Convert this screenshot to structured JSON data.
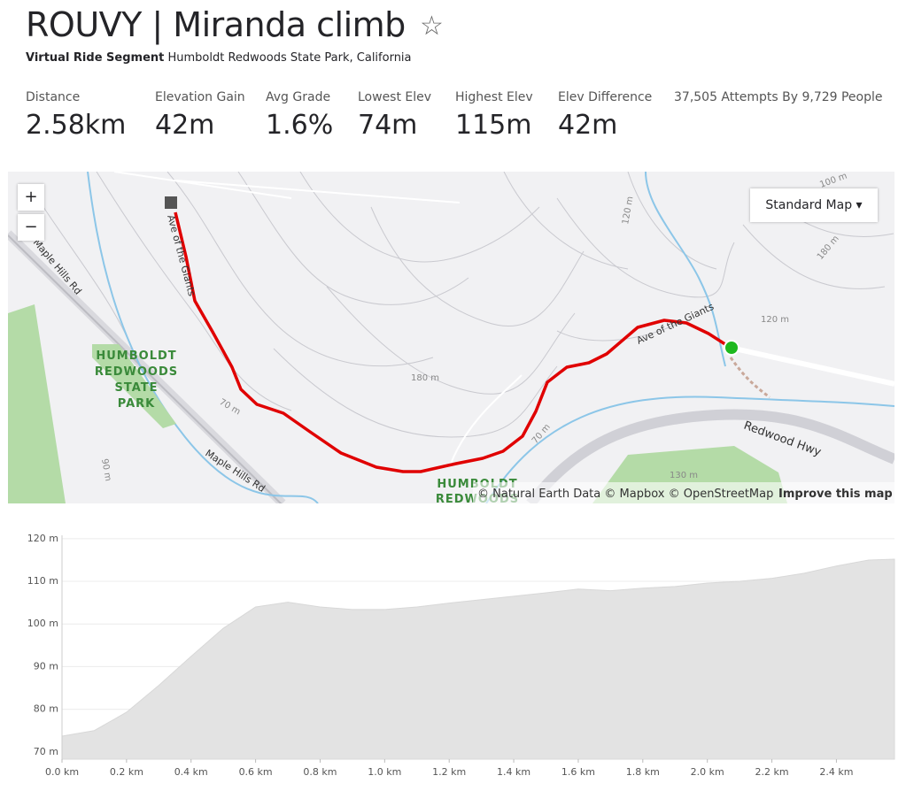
{
  "header": {
    "title": "ROUVY | Miranda climb",
    "kind": "Virtual Ride Segment",
    "location": "Humboldt Redwoods State Park, California"
  },
  "stats": [
    {
      "label": "Distance",
      "value": "2.58km"
    },
    {
      "label": "Elevation Gain",
      "value": "42m"
    },
    {
      "label": "Avg Grade",
      "value": "1.6%"
    },
    {
      "label": "Lowest Elev",
      "value": "74m"
    },
    {
      "label": "Highest Elev",
      "value": "115m"
    },
    {
      "label": "Elev Difference",
      "value": "42m"
    }
  ],
  "attempts": "37,505 Attempts By 9,729 People",
  "map": {
    "zoom_in": "+",
    "zoom_out": "−",
    "style_selector": "Standard Map",
    "labels": [
      "Maple Hills Rd",
      "Maple Hills Rd",
      "HUMBOLDT",
      "REDWOODS",
      "STATE",
      "PARK",
      "Redwood Hwy",
      "Ave of the Giants",
      "Ave of the Giants",
      "180 m",
      "70 m",
      "70 m",
      "120 m",
      "120 m",
      "180 m",
      "100 m",
      "130 m",
      "90 m",
      "HUMBOLDT",
      "REDWOODS"
    ],
    "attribution": "© Natural Earth Data © Mapbox © OpenStreetMap",
    "improve": "Improve this map"
  },
  "chart_data": {
    "type": "area",
    "color": "#e3e3e3",
    "x": [
      0,
      0.1,
      0.2,
      0.3,
      0.4,
      0.5,
      0.6,
      0.7,
      0.8,
      0.9,
      1.0,
      1.1,
      1.2,
      1.3,
      1.4,
      1.5,
      1.6,
      1.7,
      1.8,
      1.9,
      2.0,
      2.1,
      2.2,
      2.3,
      2.4,
      2.5,
      2.58
    ],
    "values": [
      73.7,
      75,
      79.3,
      85.6,
      92.4,
      99,
      104,
      105.1,
      104,
      103.4,
      103.4,
      104,
      104.9,
      105.7,
      106.5,
      107.3,
      108.2,
      107.8,
      108.4,
      108.8,
      109.6,
      110,
      110.7,
      111.9,
      113.6,
      115,
      115.2
    ],
    "xlim": [
      0,
      2.58
    ],
    "ylim": [
      68.3,
      120.8
    ],
    "xticks": [
      {
        "value": 0,
        "label": "0.0 km"
      },
      {
        "value": 0.2,
        "label": "0.2 km"
      },
      {
        "value": 0.4,
        "label": "0.4 km"
      },
      {
        "value": 0.6,
        "label": "0.6 km"
      },
      {
        "value": 0.8,
        "label": "0.8 km"
      },
      {
        "value": 1.0,
        "label": "1.0 km"
      },
      {
        "value": 1.2,
        "label": "1.2 km"
      },
      {
        "value": 1.4,
        "label": "1.4 km"
      },
      {
        "value": 1.6,
        "label": "1.6 km"
      },
      {
        "value": 1.8,
        "label": "1.8 km"
      },
      {
        "value": 2.0,
        "label": "2.0 km"
      },
      {
        "value": 2.2,
        "label": "2.2 km"
      },
      {
        "value": 2.4,
        "label": "2.4 km"
      }
    ],
    "yticks": [
      {
        "value": 70,
        "label": "70 m"
      },
      {
        "value": 80,
        "label": "80 m"
      },
      {
        "value": 90,
        "label": "90 m"
      },
      {
        "value": 100,
        "label": "100 m"
      },
      {
        "value": 110,
        "label": "110 m"
      },
      {
        "value": 120,
        "label": "120 m"
      }
    ],
    "grid": true
  }
}
